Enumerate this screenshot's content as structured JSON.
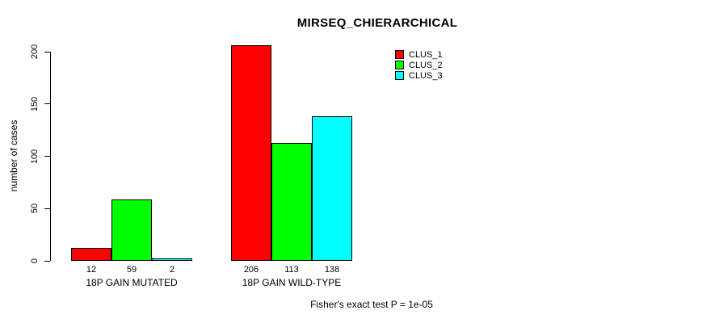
{
  "chart_data": {
    "type": "bar",
    "title": "MIRSEQ_CHIERARCHICAL",
    "ylabel": "number of cases",
    "xlabel": "",
    "ylim": [
      0,
      200
    ],
    "yticks": [
      0,
      50,
      100,
      150,
      200
    ],
    "grid": false,
    "legend_position": "top-right",
    "categories": [
      "18P GAIN MUTATED",
      "18P GAIN WILD-TYPE"
    ],
    "series": [
      {
        "name": "CLUS_1",
        "color": "#FF0000",
        "values": [
          12,
          206
        ]
      },
      {
        "name": "CLUS_2",
        "color": "#00FF00",
        "values": [
          59,
          113
        ]
      },
      {
        "name": "CLUS_3",
        "color": "#00FFFF",
        "values": [
          2,
          138
        ]
      }
    ],
    "bar_value_labels": [
      [
        12,
        59,
        2
      ],
      [
        206,
        113,
        138
      ]
    ],
    "bar_border_color": "#000000",
    "footer": "Fisher's exact test P = 1e-05"
  }
}
